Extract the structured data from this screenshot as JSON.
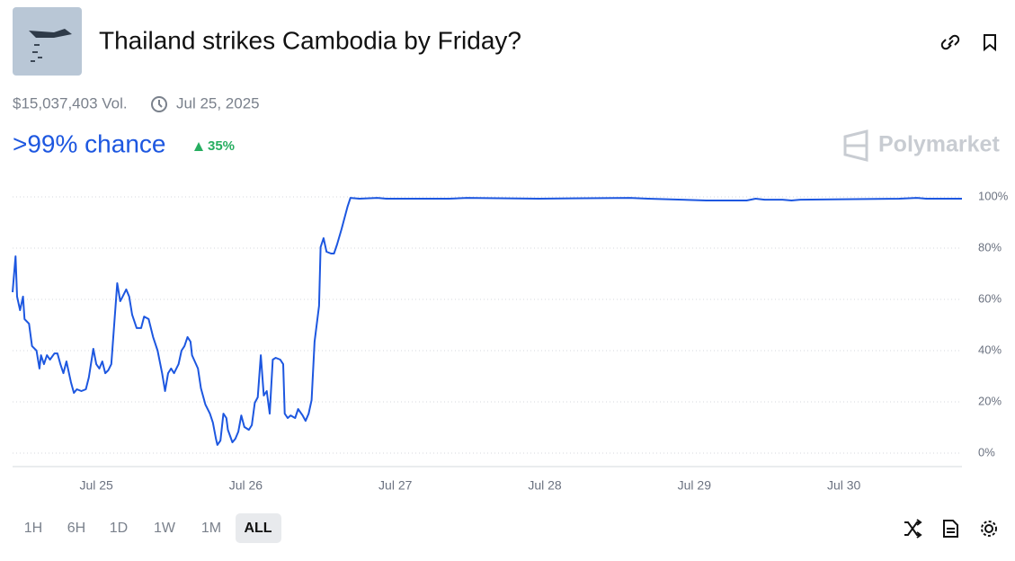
{
  "header": {
    "title": "Thailand strikes Cambodia by Friday?",
    "volume": "$15,037,403 Vol.",
    "date": "Jul 25, 2025"
  },
  "chance": {
    "headline": ">99% chance",
    "change": "35%"
  },
  "brand": "Polymarket",
  "range_buttons": [
    "1H",
    "6H",
    "1D",
    "1W",
    "1M",
    "ALL"
  ],
  "chart_data": {
    "type": "line",
    "color": "#1d57e0",
    "grid": true,
    "x": [
      24.44,
      24.46,
      24.47,
      24.49,
      24.51,
      24.52,
      24.55,
      24.57,
      24.6,
      24.62,
      24.63,
      24.65,
      24.67,
      24.69,
      24.72,
      24.74,
      24.76,
      24.78,
      24.8,
      24.83,
      24.85,
      24.87,
      24.9,
      24.93,
      24.95,
      24.98,
      25.0,
      25.02,
      25.04,
      25.06,
      25.08,
      25.1,
      25.12,
      25.14,
      25.16,
      25.17,
      25.2,
      25.22,
      25.24,
      25.27,
      25.3,
      25.32,
      25.35,
      25.38,
      25.41,
      25.44,
      25.46,
      25.48,
      25.5,
      25.52,
      25.55,
      25.57,
      25.59,
      25.61,
      25.63,
      25.64,
      25.68,
      25.7,
      25.73,
      25.76,
      25.78,
      25.8,
      25.81,
      25.83,
      25.85,
      25.87,
      25.88,
      25.91,
      25.93,
      25.95,
      25.97,
      25.99,
      26.02,
      26.04,
      26.06,
      26.08,
      26.1,
      26.12,
      26.14,
      26.16,
      26.18,
      26.2,
      26.23,
      26.25,
      26.26,
      26.28,
      26.3,
      26.33,
      26.35,
      26.38,
      26.4,
      26.42,
      26.44,
      26.46,
      26.49,
      26.5,
      26.52,
      26.54,
      26.57,
      26.59,
      26.61,
      26.64,
      26.68,
      26.7,
      26.76,
      26.88,
      26.94,
      27.36,
      27.48,
      27.96,
      28.57,
      28.69,
      29.08,
      29.17,
      29.35,
      29.41,
      29.47,
      29.59,
      29.65,
      29.71,
      30.37,
      30.49,
      30.55,
      30.79
    ],
    "values": [
      62.8,
      76.8,
      61.1,
      55.8,
      61.1,
      52.3,
      50.5,
      41.8,
      40.0,
      33.0,
      38.2,
      34.7,
      38.2,
      36.5,
      38.9,
      38.9,
      34.7,
      31.2,
      35.8,
      27.7,
      23.5,
      24.9,
      24.2,
      24.9,
      29.5,
      40.7,
      34.7,
      33.0,
      35.8,
      31.2,
      32.3,
      34.7,
      50.5,
      66.3,
      59.3,
      60.4,
      63.9,
      61.1,
      54.0,
      48.8,
      48.8,
      53.3,
      52.3,
      45.3,
      40.0,
      31.2,
      24.2,
      31.2,
      33.0,
      31.2,
      34.7,
      40.0,
      41.8,
      45.3,
      43.5,
      38.2,
      33.0,
      25.3,
      18.9,
      15.4,
      11.9,
      5.6,
      3.2,
      4.9,
      15.4,
      13.7,
      9.1,
      4.2,
      5.6,
      8.4,
      14.7,
      10.2,
      9.1,
      10.9,
      19.6,
      21.8,
      38.2,
      22.5,
      24.2,
      15.4,
      36.5,
      37.2,
      36.5,
      34.7,
      15.4,
      13.7,
      14.7,
      13.7,
      17.2,
      14.7,
      12.6,
      15.4,
      20.7,
      43.5,
      57.5,
      80.4,
      83.9,
      78.6,
      77.9,
      77.9,
      81.4,
      87.4,
      96.1,
      99.6,
      99.3,
      99.6,
      99.3,
      99.3,
      99.6,
      99.3,
      99.6,
      99.3,
      98.6,
      98.6,
      98.6,
      99.3,
      98.9,
      98.9,
      98.6,
      98.9,
      99.3,
      99.6,
      99.3,
      99.3
    ],
    "xlim": [
      24.44,
      30.79
    ],
    "xticks": [
      {
        "value": 25,
        "label": "Jul 25"
      },
      {
        "value": 26,
        "label": "Jul 26"
      },
      {
        "value": 27,
        "label": "Jul 27"
      },
      {
        "value": 28,
        "label": "Jul 28"
      },
      {
        "value": 29,
        "label": "Jul 29"
      },
      {
        "value": 30,
        "label": "Jul 30"
      }
    ],
    "ylim": [
      0,
      100
    ],
    "yticks": [
      {
        "value": 0,
        "label": "0%"
      },
      {
        "value": 20,
        "label": "20%"
      },
      {
        "value": 40,
        "label": "40%"
      },
      {
        "value": 60,
        "label": "60%"
      },
      {
        "value": 80,
        "label": "80%"
      },
      {
        "value": 100,
        "label": "100%"
      }
    ]
  }
}
